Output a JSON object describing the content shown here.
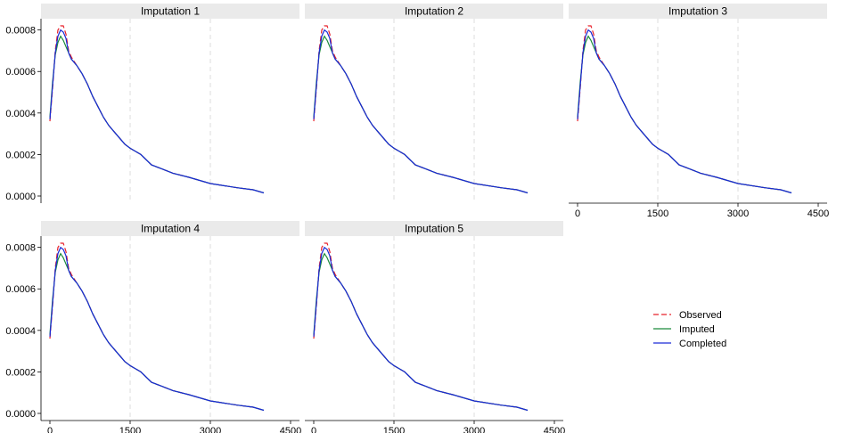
{
  "chart_data": {
    "type": "line",
    "panels": [
      {
        "title": "Imputation 1"
      },
      {
        "title": "Imputation 2"
      },
      {
        "title": "Imputation 3"
      },
      {
        "title": "Imputation 4"
      },
      {
        "title": "Imputation 5"
      }
    ],
    "x_ticks": [
      "0",
      "1500",
      "3000",
      "4500"
    ],
    "y_ticks": [
      "0.0000",
      "0.0002",
      "0.0004",
      "0.0006",
      "0.0008"
    ],
    "xlim": [
      0,
      4500
    ],
    "ylim": [
      0,
      0.00082
    ],
    "grid": "vertical dashed",
    "legend_position": "right, bottom row",
    "series": [
      {
        "name": "Observed",
        "color": "#e8202a",
        "dash": "dashed",
        "points": [
          [
            0,
            0.00036
          ],
          [
            50,
            0.00052
          ],
          [
            100,
            0.0007
          ],
          [
            150,
            0.0008
          ],
          [
            200,
            0.00082
          ],
          [
            250,
            0.00082
          ],
          [
            300,
            0.00078
          ],
          [
            350,
            0.0007
          ],
          [
            400,
            0.00067
          ],
          [
            500,
            0.00063
          ],
          [
            600,
            0.00059
          ],
          [
            700,
            0.00054
          ],
          [
            800,
            0.00048
          ],
          [
            900,
            0.00043
          ],
          [
            1000,
            0.00038
          ],
          [
            1100,
            0.00034
          ],
          [
            1200,
            0.00031
          ],
          [
            1300,
            0.00028
          ],
          [
            1400,
            0.00025
          ],
          [
            1500,
            0.00023
          ],
          [
            1700,
            0.0002
          ],
          [
            1900,
            0.00015
          ],
          [
            2100,
            0.00013
          ],
          [
            2300,
            0.00011
          ],
          [
            2600,
            9e-05
          ],
          [
            3000,
            6e-05
          ],
          [
            3500,
            4e-05
          ],
          [
            3800,
            3e-05
          ],
          [
            4000,
            1.5e-05
          ]
        ]
      },
      {
        "name": "Imputed",
        "color": "#1a8a3a",
        "dash": "solid",
        "points": [
          [
            0,
            0.00038
          ],
          [
            50,
            0.00055
          ],
          [
            100,
            0.00068
          ],
          [
            150,
            0.00074
          ],
          [
            200,
            0.00077
          ],
          [
            250,
            0.00075
          ],
          [
            300,
            0.00072
          ],
          [
            350,
            0.00069
          ],
          [
            400,
            0.00066
          ],
          [
            500,
            0.00063
          ],
          [
            600,
            0.00059
          ],
          [
            700,
            0.00054
          ],
          [
            800,
            0.00048
          ],
          [
            900,
            0.00043
          ],
          [
            1000,
            0.00038
          ],
          [
            1100,
            0.00034
          ],
          [
            1200,
            0.00031
          ],
          [
            1300,
            0.00028
          ],
          [
            1400,
            0.00025
          ],
          [
            1500,
            0.00023
          ],
          [
            1700,
            0.0002
          ],
          [
            1900,
            0.00015
          ],
          [
            2100,
            0.00013
          ],
          [
            2300,
            0.00011
          ],
          [
            2600,
            9e-05
          ],
          [
            3000,
            6e-05
          ],
          [
            3500,
            4e-05
          ],
          [
            3800,
            3e-05
          ],
          [
            4000,
            1.5e-05
          ]
        ]
      },
      {
        "name": "Completed",
        "color": "#1a2ad6",
        "dash": "solid",
        "points": [
          [
            0,
            0.00037
          ],
          [
            50,
            0.00053
          ],
          [
            100,
            0.00069
          ],
          [
            150,
            0.00077
          ],
          [
            200,
            0.0008
          ],
          [
            250,
            0.00079
          ],
          [
            300,
            0.00076
          ],
          [
            350,
            0.00069
          ],
          [
            400,
            0.00066
          ],
          [
            500,
            0.00063
          ],
          [
            600,
            0.00059
          ],
          [
            700,
            0.00054
          ],
          [
            800,
            0.00048
          ],
          [
            900,
            0.00043
          ],
          [
            1000,
            0.00038
          ],
          [
            1100,
            0.00034
          ],
          [
            1200,
            0.00031
          ],
          [
            1300,
            0.00028
          ],
          [
            1400,
            0.00025
          ],
          [
            1500,
            0.00023
          ],
          [
            1700,
            0.0002
          ],
          [
            1900,
            0.00015
          ],
          [
            2100,
            0.00013
          ],
          [
            2300,
            0.00011
          ],
          [
            2600,
            9e-05
          ],
          [
            3000,
            6e-05
          ],
          [
            3500,
            4e-05
          ],
          [
            3800,
            3e-05
          ],
          [
            4000,
            1.5e-05
          ]
        ]
      }
    ]
  }
}
